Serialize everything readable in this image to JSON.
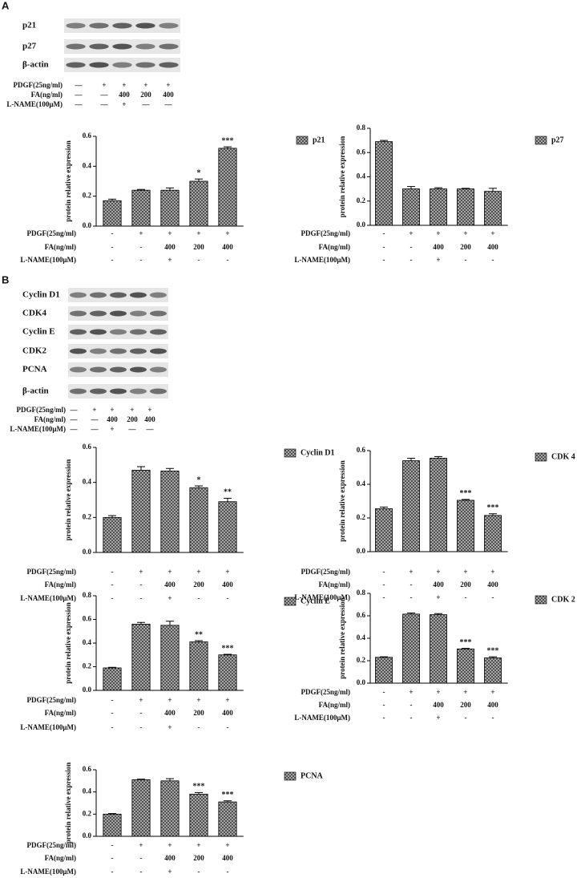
{
  "panels": [
    "A",
    "B"
  ],
  "blots": [
    {
      "labels": [
        "p21",
        "p27",
        "β-actin"
      ],
      "conditions": [
        {
          "label": "PDGF(25ng/ml)",
          "values": [
            "—",
            "+",
            "+",
            "+",
            "+"
          ]
        },
        {
          "label": "FA(ng/ml)",
          "values": [
            "—",
            "—",
            "400",
            "200",
            "400"
          ]
        },
        {
          "label": "L-NAME(100μM)",
          "values": [
            "—",
            "—",
            "+",
            "—",
            "—"
          ]
        }
      ]
    },
    {
      "labels": [
        "Cyclin D1",
        "CDK4",
        "Cyclin E",
        "CDK2",
        "PCNA",
        "β-actin"
      ],
      "conditions": [
        {
          "label": "PDGF(25ng/ml)",
          "values": [
            "—",
            "+",
            "+",
            "+",
            "+"
          ]
        },
        {
          "label": "FA(ng/ml)",
          "values": [
            "—",
            "—",
            "400",
            "200",
            "400"
          ]
        },
        {
          "label": "L-NAME(100μM)",
          "values": [
            "—",
            "—",
            "+",
            "—",
            "—"
          ]
        }
      ]
    }
  ],
  "chart_data": [
    {
      "type": "bar",
      "y_label": "protein relative expression",
      "ylim": [
        0,
        0.6
      ],
      "yticks": [
        {
          "value": 0,
          "label": "0.0"
        },
        0.2,
        0.4,
        0.6
      ],
      "series": [
        {
          "name": "p21",
          "color": "#3a3a3a",
          "values": [
            0.17,
            0.24,
            0.24,
            0.3,
            0.52
          ],
          "errors": [
            0.01,
            0.005,
            0.015,
            0.015,
            0.01
          ],
          "annotations": [
            null,
            null,
            null,
            "*",
            "***"
          ]
        }
      ],
      "conditions": [
        {
          "label": "PDGF(25ng/ml)",
          "values": [
            "-",
            "+",
            "+",
            "+",
            "+"
          ]
        },
        {
          "label": "FA(ng/ml)",
          "values": [
            "-",
            "-",
            "400",
            "200",
            "400"
          ]
        },
        {
          "label": "L-NAME(100μM)",
          "values": [
            "-",
            "-",
            "+",
            "-",
            "-"
          ]
        }
      ]
    },
    {
      "type": "bar",
      "y_label": "protein relative expression",
      "ylim": [
        0,
        0.8
      ],
      "yticks": [
        {
          "value": 0,
          "label": "0.0"
        },
        0.2,
        0.4,
        0.6,
        0.8
      ],
      "series": [
        {
          "name": "p27",
          "color": "#3a3a3a",
          "values": [
            0.69,
            0.3,
            0.3,
            0.3,
            0.28
          ],
          "errors": [
            0.01,
            0.02,
            0.01,
            0.005,
            0.025
          ],
          "annotations": [
            null,
            null,
            null,
            null,
            null
          ]
        }
      ],
      "conditions": [
        {
          "label": "PDGF(25ng/ml)",
          "values": [
            "-",
            "+",
            "+",
            "+",
            "+"
          ]
        },
        {
          "label": "FA(ng/ml)",
          "values": [
            "-",
            "-",
            "400",
            "200",
            "400"
          ]
        },
        {
          "label": "L-NAME(100μM)",
          "values": [
            "-",
            "-",
            "+",
            "-",
            "-"
          ]
        }
      ]
    },
    {
      "type": "bar",
      "y_label": "protein relative expression",
      "ylim": [
        0,
        0.6
      ],
      "yticks": [
        {
          "value": 0,
          "label": "0.0"
        },
        0.2,
        0.4,
        0.6
      ],
      "series": [
        {
          "name": "Cyclin D1",
          "color": "#3a3a3a",
          "values": [
            0.2,
            0.47,
            0.465,
            0.37,
            0.29
          ],
          "errors": [
            0.01,
            0.02,
            0.015,
            0.01,
            0.02
          ],
          "annotations": [
            null,
            null,
            null,
            "*",
            "**"
          ]
        }
      ],
      "conditions": [
        {
          "label": "PDGF(25ng/ml)",
          "values": [
            "-",
            "+",
            "+",
            "+",
            "+"
          ]
        },
        {
          "label": "FA(ng/ml)",
          "values": [
            "-",
            "-",
            "400",
            "200",
            "400"
          ]
        },
        {
          "label": "L-NAME(100μM)",
          "values": [
            "-",
            "-",
            "+",
            "-",
            "-"
          ]
        }
      ]
    },
    {
      "type": "bar",
      "y_label": "protein relative expression",
      "ylim": [
        0,
        0.6
      ],
      "yticks": [
        {
          "value": 0,
          "label": "0.0"
        },
        0.2,
        0.4,
        0.6
      ],
      "series": [
        {
          "name": "CDK 4",
          "color": "#3a3a3a",
          "values": [
            0.255,
            0.54,
            0.555,
            0.305,
            0.215
          ],
          "errors": [
            0.01,
            0.015,
            0.01,
            0.005,
            0.01
          ],
          "annotations": [
            null,
            null,
            null,
            "***",
            "***"
          ]
        }
      ],
      "conditions": [
        {
          "label": "PDGF(25ng/ml)",
          "values": [
            "-",
            "+",
            "+",
            "+",
            "+"
          ]
        },
        {
          "label": "FA(ng/ml)",
          "values": [
            "-",
            "-",
            "400",
            "200",
            "400"
          ]
        },
        {
          "label": "L-NAME(100μM)",
          "values": [
            "-",
            "-",
            "+",
            "-",
            "-"
          ]
        }
      ]
    },
    {
      "type": "bar",
      "y_label": "protein relative expression",
      "ylim": [
        0,
        0.8
      ],
      "yticks": [
        {
          "value": 0,
          "label": "0.0"
        },
        0.2,
        0.4,
        0.6,
        0.8
      ],
      "series": [
        {
          "name": "Cyclin E",
          "color": "#3a3a3a",
          "values": [
            0.19,
            0.56,
            0.55,
            0.41,
            0.3
          ],
          "errors": [
            0.005,
            0.015,
            0.035,
            0.01,
            0.005
          ],
          "annotations": [
            null,
            null,
            null,
            "**",
            "***"
          ]
        }
      ],
      "conditions": [
        {
          "label": "PDGF(25ng/ml)",
          "values": [
            "-",
            "+",
            "+",
            "+",
            "+"
          ]
        },
        {
          "label": "FA(ng/ml)",
          "values": [
            "-",
            "-",
            "400",
            "200",
            "400"
          ]
        },
        {
          "label": "L-NAME(100μM)",
          "values": [
            "-",
            "-",
            "+",
            "-",
            "-"
          ]
        }
      ]
    },
    {
      "type": "bar",
      "y_label": "protein relative expression",
      "ylim": [
        0,
        0.8
      ],
      "yticks": [
        {
          "value": 0,
          "label": "0.0"
        },
        0.2,
        0.4,
        0.6,
        0.8
      ],
      "series": [
        {
          "name": "CDK 2",
          "color": "#3a3a3a",
          "values": [
            0.23,
            0.615,
            0.61,
            0.305,
            0.225
          ],
          "errors": [
            0.005,
            0.01,
            0.01,
            0.005,
            0.01
          ],
          "annotations": [
            null,
            null,
            null,
            "***",
            "***"
          ]
        }
      ],
      "conditions": [
        {
          "label": "PDGF(25ng/ml)",
          "values": [
            "-",
            "+",
            "+",
            "+",
            "+"
          ]
        },
        {
          "label": "FA(ng/ml)",
          "values": [
            "-",
            "-",
            "400",
            "200",
            "400"
          ]
        },
        {
          "label": "L-NAME(100μM)",
          "values": [
            "-",
            "-",
            "+",
            "-",
            "-"
          ]
        }
      ]
    },
    {
      "type": "bar",
      "y_label": "protein relative expression",
      "ylim": [
        0,
        0.6
      ],
      "yticks": [
        {
          "value": 0,
          "label": "0.0"
        },
        0.2,
        0.4,
        0.6
      ],
      "series": [
        {
          "name": "PCNA",
          "color": "#3a3a3a",
          "values": [
            0.2,
            0.51,
            0.5,
            0.38,
            0.31
          ],
          "errors": [
            0.005,
            0.005,
            0.02,
            0.015,
            0.01
          ],
          "annotations": [
            null,
            null,
            null,
            "***",
            "***"
          ]
        }
      ],
      "conditions": [
        {
          "label": "PDGF(25ng/ml)",
          "values": [
            "-",
            "+",
            "+",
            "+",
            "+"
          ]
        },
        {
          "label": "FA(ng/ml)",
          "values": [
            "-",
            "-",
            "400",
            "200",
            "400"
          ]
        },
        {
          "label": "L-NAME(100μM)",
          "values": [
            "-",
            "-",
            "+",
            "-",
            "-"
          ]
        }
      ]
    }
  ]
}
